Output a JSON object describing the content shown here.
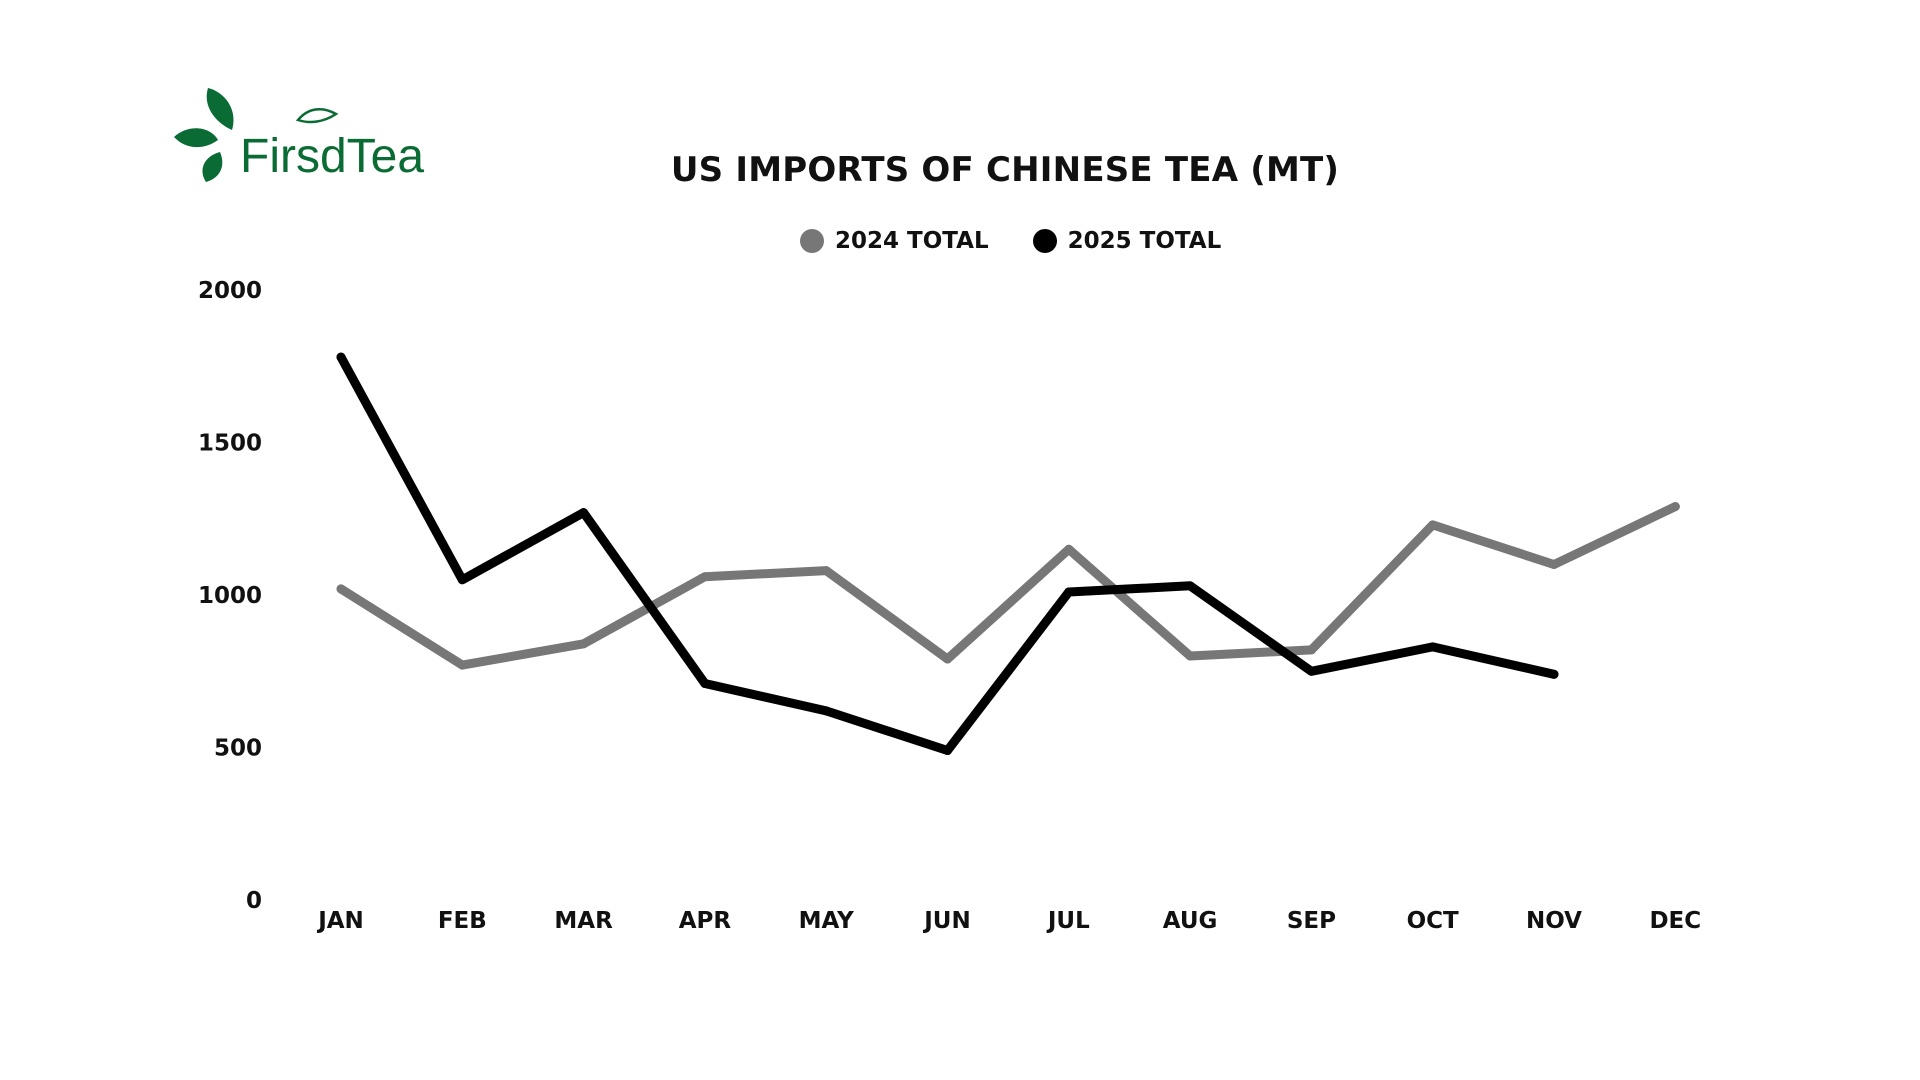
{
  "logo": {
    "text": "FirsdTea",
    "color": "#0b6b34"
  },
  "chart_data": {
    "type": "line",
    "title": "US IMPORTS OF CHINESE TEA (MT)",
    "xlabel": "",
    "ylabel": "",
    "categories": [
      "JAN",
      "FEB",
      "MAR",
      "APR",
      "MAY",
      "JUN",
      "JUL",
      "AUG",
      "SEP",
      "OCT",
      "NOV",
      "DEC"
    ],
    "yticks": [
      "0",
      "500",
      "1000",
      "1500",
      "2000"
    ],
    "ylim": [
      0,
      2000
    ],
    "grid": false,
    "legend_position": "top-center",
    "series": [
      {
        "name": "2024 TOTAL",
        "color": "#777777",
        "values": [
          1020,
          770,
          840,
          1060,
          1080,
          790,
          1150,
          800,
          820,
          1230,
          1100,
          1290
        ]
      },
      {
        "name": "2025 TOTAL",
        "color": "#000000",
        "values": [
          1780,
          1050,
          1270,
          710,
          620,
          490,
          1010,
          1030,
          750,
          830,
          740,
          null
        ]
      }
    ]
  }
}
